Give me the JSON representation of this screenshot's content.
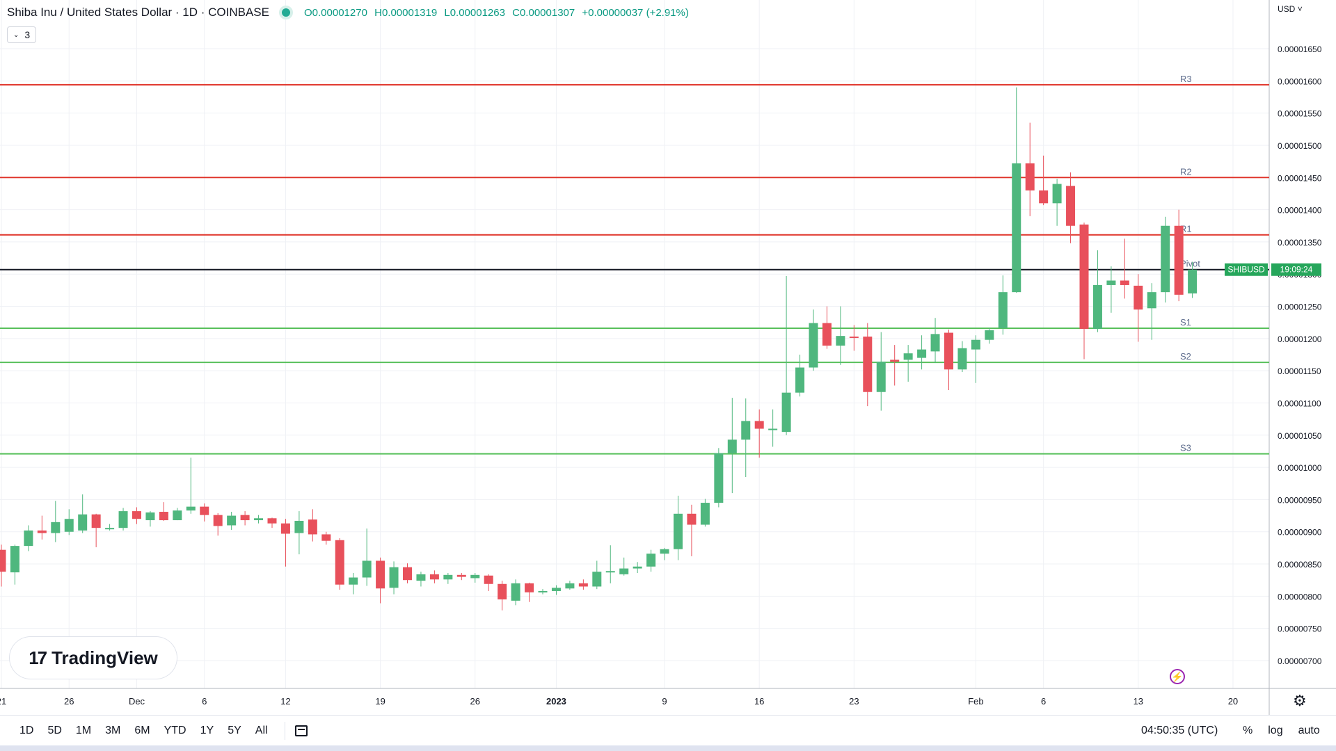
{
  "header": {
    "title": "Shiba Inu / United States Dollar · 1D · COINBASE",
    "ohlc": [
      {
        "label": "O",
        "value": "0.00001270"
      },
      {
        "label": "H",
        "value": "0.00001319"
      },
      {
        "label": "L",
        "value": "0.00001263"
      },
      {
        "label": "C",
        "value": "0.00001307"
      }
    ],
    "change": "+0.00000037 (+2.91%)",
    "indicators_count": "3",
    "currency": "USD"
  },
  "colors": {
    "up": "#4fb77e",
    "down": "#e8505b",
    "resistance": "#e0352b",
    "support": "#58c05b",
    "pivot": "#131722",
    "label": "#5d6c8c",
    "grid": "#eff1f5",
    "tag": "#26a65b"
  },
  "chart_data": {
    "type": "candlestick",
    "symbol_tag": "SHIBUSD",
    "countdown": "19:09:24",
    "ylim": [
      6.7e-06,
      1.715e-05
    ],
    "y_ticks": [
      "0.00001650",
      "0.00001600",
      "0.00001550",
      "0.00001500",
      "0.00001450",
      "0.00001400",
      "0.00001350",
      "0.00001300",
      "0.00001250",
      "0.00001200",
      "0.00001150",
      "0.00001100",
      "0.00001050",
      "0.00001000",
      "0.00000950",
      "0.00000900",
      "0.00000850",
      "0.00000800",
      "0.00000750",
      "0.00000700"
    ],
    "x_ticks": [
      {
        "label": "21",
        "date": "2022-11-21"
      },
      {
        "label": "26",
        "date": "2022-11-26"
      },
      {
        "label": "Dec",
        "date": "2022-12-01"
      },
      {
        "label": "6",
        "date": "2022-12-06"
      },
      {
        "label": "12",
        "date": "2022-12-12"
      },
      {
        "label": "19",
        "date": "2022-12-19"
      },
      {
        "label": "26",
        "date": "2022-12-26"
      },
      {
        "label": "2023",
        "date": "2023-01-01"
      },
      {
        "label": "9",
        "date": "2023-01-09"
      },
      {
        "label": "16",
        "date": "2023-01-16"
      },
      {
        "label": "23",
        "date": "2023-01-23"
      },
      {
        "label": "Feb",
        "date": "2023-02-01"
      },
      {
        "label": "6",
        "date": "2023-02-06"
      },
      {
        "label": "13",
        "date": "2023-02-13"
      },
      {
        "label": "20",
        "date": "2023-02-20"
      }
    ],
    "levels": [
      {
        "name": "R3",
        "value": 1.594e-05,
        "kind": "resistance"
      },
      {
        "name": "R2",
        "value": 1.45e-05,
        "kind": "resistance"
      },
      {
        "name": "R1",
        "value": 1.361e-05,
        "kind": "resistance"
      },
      {
        "name": "Pivot",
        "value": 1.307e-05,
        "kind": "pivot"
      },
      {
        "name": "S1",
        "value": 1.216e-05,
        "kind": "support"
      },
      {
        "name": "S2",
        "value": 1.163e-05,
        "kind": "support"
      },
      {
        "name": "S3",
        "value": 1.021e-05,
        "kind": "support"
      }
    ],
    "candles": [
      {
        "d": "2022-11-21",
        "o": 8.72e-06,
        "h": 8.8e-06,
        "l": 8.15e-06,
        "c": 8.38e-06
      },
      {
        "d": "2022-11-22",
        "o": 8.37e-06,
        "h": 8.8e-06,
        "l": 8.18e-06,
        "c": 8.78e-06
      },
      {
        "d": "2022-11-23",
        "o": 8.78e-06,
        "h": 9.1e-06,
        "l": 8.7e-06,
        "c": 9.02e-06
      },
      {
        "d": "2022-11-24",
        "o": 9.02e-06,
        "h": 9.25e-06,
        "l": 8.88e-06,
        "c": 8.98e-06
      },
      {
        "d": "2022-11-25",
        "o": 8.98e-06,
        "h": 9.48e-06,
        "l": 8.84e-06,
        "c": 9.15e-06
      },
      {
        "d": "2022-11-26",
        "o": 9e-06,
        "h": 9.35e-06,
        "l": 8.95e-06,
        "c": 9.2e-06
      },
      {
        "d": "2022-11-27",
        "o": 9.02e-06,
        "h": 9.58e-06,
        "l": 8.98e-06,
        "c": 9.27e-06
      },
      {
        "d": "2022-11-28",
        "o": 9.27e-06,
        "h": 9.28e-06,
        "l": 8.76e-06,
        "c": 9.06e-06
      },
      {
        "d": "2022-11-29",
        "o": 9.04e-06,
        "h": 9.12e-06,
        "l": 9.02e-06,
        "c": 9.06e-06
      },
      {
        "d": "2022-11-30",
        "o": 9.06e-06,
        "h": 9.37e-06,
        "l": 9.02e-06,
        "c": 9.32e-06
      },
      {
        "d": "2022-12-01",
        "o": 9.32e-06,
        "h": 9.38e-06,
        "l": 9.12e-06,
        "c": 9.2e-06
      },
      {
        "d": "2022-12-02",
        "o": 9.18e-06,
        "h": 9.32e-06,
        "l": 9.08e-06,
        "c": 9.3e-06
      },
      {
        "d": "2022-12-03",
        "o": 9.31e-06,
        "h": 9.46e-06,
        "l": 9.17e-06,
        "c": 9.18e-06
      },
      {
        "d": "2022-12-04",
        "o": 9.18e-06,
        "h": 9.37e-06,
        "l": 9.18e-06,
        "c": 9.33e-06
      },
      {
        "d": "2022-12-05",
        "o": 9.33e-06,
        "h": 1.015e-05,
        "l": 9.28e-06,
        "c": 9.39e-06
      },
      {
        "d": "2022-12-06",
        "o": 9.39e-06,
        "h": 9.44e-06,
        "l": 9.16e-06,
        "c": 9.26e-06
      },
      {
        "d": "2022-12-07",
        "o": 9.26e-06,
        "h": 9.29e-06,
        "l": 8.94e-06,
        "c": 9.09e-06
      },
      {
        "d": "2022-12-08",
        "o": 9.1e-06,
        "h": 9.31e-06,
        "l": 9.03e-06,
        "c": 9.25e-06
      },
      {
        "d": "2022-12-09",
        "o": 9.26e-06,
        "h": 9.32e-06,
        "l": 9.1e-06,
        "c": 9.18e-06
      },
      {
        "d": "2022-12-10",
        "o": 9.18e-06,
        "h": 9.26e-06,
        "l": 9.13e-06,
        "c": 9.21e-06
      },
      {
        "d": "2022-12-11",
        "o": 9.21e-06,
        "h": 9.22e-06,
        "l": 9.06e-06,
        "c": 9.13e-06
      },
      {
        "d": "2022-12-12",
        "o": 9.13e-06,
        "h": 9.2e-06,
        "l": 8.46e-06,
        "c": 8.97e-06
      },
      {
        "d": "2022-12-13",
        "o": 8.98e-06,
        "h": 9.32e-06,
        "l": 8.65e-06,
        "c": 9.17e-06
      },
      {
        "d": "2022-12-14",
        "o": 9.19e-06,
        "h": 9.35e-06,
        "l": 8.85e-06,
        "c": 8.96e-06
      },
      {
        "d": "2022-12-15",
        "o": 8.96e-06,
        "h": 9e-06,
        "l": 8.8e-06,
        "c": 8.86e-06
      },
      {
        "d": "2022-12-16",
        "o": 8.87e-06,
        "h": 8.9e-06,
        "l": 8.1e-06,
        "c": 8.18e-06
      },
      {
        "d": "2022-12-17",
        "o": 8.18e-06,
        "h": 8.36e-06,
        "l": 8.03e-06,
        "c": 8.29e-06
      },
      {
        "d": "2022-12-18",
        "o": 8.29e-06,
        "h": 9.05e-06,
        "l": 8.16e-06,
        "c": 8.55e-06
      },
      {
        "d": "2022-12-19",
        "o": 8.55e-06,
        "h": 8.6e-06,
        "l": 7.89e-06,
        "c": 8.12e-06
      },
      {
        "d": "2022-12-20",
        "o": 8.13e-06,
        "h": 8.54e-06,
        "l": 8.03e-06,
        "c": 8.45e-06
      },
      {
        "d": "2022-12-21",
        "o": 8.45e-06,
        "h": 8.51e-06,
        "l": 8.2e-06,
        "c": 8.25e-06
      },
      {
        "d": "2022-12-22",
        "o": 8.24e-06,
        "h": 8.38e-06,
        "l": 8.15e-06,
        "c": 8.34e-06
      },
      {
        "d": "2022-12-23",
        "o": 8.34e-06,
        "h": 8.4e-06,
        "l": 8.2e-06,
        "c": 8.26e-06
      },
      {
        "d": "2022-12-24",
        "o": 8.26e-06,
        "h": 8.36e-06,
        "l": 8.19e-06,
        "c": 8.33e-06
      },
      {
        "d": "2022-12-25",
        "o": 8.33e-06,
        "h": 8.36e-06,
        "l": 8.25e-06,
        "c": 8.3e-06
      },
      {
        "d": "2022-12-26",
        "o": 8.28e-06,
        "h": 8.36e-06,
        "l": 8.21e-06,
        "c": 8.33e-06
      },
      {
        "d": "2022-12-27",
        "o": 8.32e-06,
        "h": 8.34e-06,
        "l": 8.08e-06,
        "c": 8.19e-06
      },
      {
        "d": "2022-12-28",
        "o": 8.19e-06,
        "h": 8.24e-06,
        "l": 7.78e-06,
        "c": 7.95e-06
      },
      {
        "d": "2022-12-29",
        "o": 7.93e-06,
        "h": 8.26e-06,
        "l": 7.86e-06,
        "c": 8.2e-06
      },
      {
        "d": "2022-12-30",
        "o": 8.2e-06,
        "h": 8.21e-06,
        "l": 7.91e-06,
        "c": 8.06e-06
      },
      {
        "d": "2022-12-31",
        "o": 8.06e-06,
        "h": 8.11e-06,
        "l": 8.03e-06,
        "c": 8.08e-06
      },
      {
        "d": "2023-01-01",
        "o": 8.08e-06,
        "h": 8.17e-06,
        "l": 8.02e-06,
        "c": 8.13e-06
      },
      {
        "d": "2023-01-02",
        "o": 8.12e-06,
        "h": 8.24e-06,
        "l": 8.1e-06,
        "c": 8.2e-06
      },
      {
        "d": "2023-01-03",
        "o": 8.2e-06,
        "h": 8.26e-06,
        "l": 8.1e-06,
        "c": 8.15e-06
      },
      {
        "d": "2023-01-04",
        "o": 8.15e-06,
        "h": 8.55e-06,
        "l": 8.11e-06,
        "c": 8.38e-06
      },
      {
        "d": "2023-01-05",
        "o": 8.38e-06,
        "h": 8.79e-06,
        "l": 8.2e-06,
        "c": 8.39e-06
      },
      {
        "d": "2023-01-06",
        "o": 8.34e-06,
        "h": 8.6e-06,
        "l": 8.32e-06,
        "c": 8.43e-06
      },
      {
        "d": "2023-01-07",
        "o": 8.43e-06,
        "h": 8.53e-06,
        "l": 8.36e-06,
        "c": 8.46e-06
      },
      {
        "d": "2023-01-08",
        "o": 8.46e-06,
        "h": 8.72e-06,
        "l": 8.38e-06,
        "c": 8.66e-06
      },
      {
        "d": "2023-01-09",
        "o": 8.66e-06,
        "h": 8.75e-06,
        "l": 8.56e-06,
        "c": 8.73e-06
      },
      {
        "d": "2023-01-10",
        "o": 8.73e-06,
        "h": 9.56e-06,
        "l": 8.56e-06,
        "c": 9.28e-06
      },
      {
        "d": "2023-01-11",
        "o": 9.28e-06,
        "h": 9.42e-06,
        "l": 8.62e-06,
        "c": 9.11e-06
      },
      {
        "d": "2023-01-12",
        "o": 9.11e-06,
        "h": 9.51e-06,
        "l": 9.08e-06,
        "c": 9.45e-06
      },
      {
        "d": "2023-01-13",
        "o": 9.45e-06,
        "h": 1.03e-05,
        "l": 9.38e-06,
        "c": 1.022e-05
      },
      {
        "d": "2023-01-14",
        "o": 1.022e-05,
        "h": 1.108e-05,
        "l": 9.6e-06,
        "c": 1.043e-05
      },
      {
        "d": "2023-01-15",
        "o": 1.043e-05,
        "h": 1.107e-05,
        "l": 9.85e-06,
        "c": 1.072e-05
      },
      {
        "d": "2023-01-16",
        "o": 1.072e-05,
        "h": 1.09e-05,
        "l": 1.015e-05,
        "c": 1.06e-05
      },
      {
        "d": "2023-01-17",
        "o": 1.059e-05,
        "h": 1.09e-05,
        "l": 1.032e-05,
        "c": 1.06e-05
      },
      {
        "d": "2023-01-18",
        "o": 1.055e-05,
        "h": 1.297e-05,
        "l": 1.05e-05,
        "c": 1.116e-05
      },
      {
        "d": "2023-01-19",
        "o": 1.116e-05,
        "h": 1.175e-05,
        "l": 1.11e-05,
        "c": 1.155e-05
      },
      {
        "d": "2023-01-20",
        "o": 1.155e-05,
        "h": 1.245e-05,
        "l": 1.15e-05,
        "c": 1.224e-05
      },
      {
        "d": "2023-01-21",
        "o": 1.224e-05,
        "h": 1.25e-05,
        "l": 1.184e-05,
        "c": 1.189e-05
      },
      {
        "d": "2023-01-22",
        "o": 1.189e-05,
        "h": 1.25e-05,
        "l": 1.159e-05,
        "c": 1.204e-05
      },
      {
        "d": "2023-01-23",
        "o": 1.203e-05,
        "h": 1.221e-05,
        "l": 1.181e-05,
        "c": 1.201e-05
      },
      {
        "d": "2023-01-24",
        "o": 1.203e-05,
        "h": 1.224e-05,
        "l": 1.095e-05,
        "c": 1.117e-05
      },
      {
        "d": "2023-01-25",
        "o": 1.117e-05,
        "h": 1.21e-05,
        "l": 1.088e-05,
        "c": 1.164e-05
      },
      {
        "d": "2023-01-26",
        "o": 1.167e-05,
        "h": 1.19e-05,
        "l": 1.127e-05,
        "c": 1.164e-05
      },
      {
        "d": "2023-01-27",
        "o": 1.167e-05,
        "h": 1.19e-05,
        "l": 1.133e-05,
        "c": 1.177e-05
      },
      {
        "d": "2023-01-28",
        "o": 1.17e-05,
        "h": 1.205e-05,
        "l": 1.152e-05,
        "c": 1.183e-05
      },
      {
        "d": "2023-01-29",
        "o": 1.18e-05,
        "h": 1.232e-05,
        "l": 1.162e-05,
        "c": 1.207e-05
      },
      {
        "d": "2023-01-30",
        "o": 1.209e-05,
        "h": 1.214e-05,
        "l": 1.12e-05,
        "c": 1.152e-05
      },
      {
        "d": "2023-01-31",
        "o": 1.152e-05,
        "h": 1.196e-05,
        "l": 1.148e-05,
        "c": 1.185e-05
      },
      {
        "d": "2023-02-01",
        "o": 1.183e-05,
        "h": 1.205e-05,
        "l": 1.131e-05,
        "c": 1.198e-05
      },
      {
        "d": "2023-02-02",
        "o": 1.198e-05,
        "h": 1.217e-05,
        "l": 1.192e-05,
        "c": 1.213e-05
      },
      {
        "d": "2023-02-03",
        "o": 1.216e-05,
        "h": 1.298e-05,
        "l": 1.206e-05,
        "c": 1.272e-05
      },
      {
        "d": "2023-02-04",
        "o": 1.272e-05,
        "h": 1.59e-05,
        "l": 1.271e-05,
        "c": 1.472e-05
      },
      {
        "d": "2023-02-05",
        "o": 1.472e-05,
        "h": 1.535e-05,
        "l": 1.39e-05,
        "c": 1.43e-05
      },
      {
        "d": "2023-02-06",
        "o": 1.43e-05,
        "h": 1.484e-05,
        "l": 1.407e-05,
        "c": 1.41e-05
      },
      {
        "d": "2023-02-07",
        "o": 1.41e-05,
        "h": 1.448e-05,
        "l": 1.375e-05,
        "c": 1.44e-05
      },
      {
        "d": "2023-02-08",
        "o": 1.437e-05,
        "h": 1.458e-05,
        "l": 1.348e-05,
        "c": 1.375e-05
      },
      {
        "d": "2023-02-09",
        "o": 1.377e-05,
        "h": 1.38e-05,
        "l": 1.168e-05,
        "c": 1.215e-05
      },
      {
        "d": "2023-02-10",
        "o": 1.215e-05,
        "h": 1.337e-05,
        "l": 1.21e-05,
        "c": 1.283e-05
      },
      {
        "d": "2023-02-11",
        "o": 1.283e-05,
        "h": 1.312e-05,
        "l": 1.24e-05,
        "c": 1.29e-05
      },
      {
        "d": "2023-02-12",
        "o": 1.29e-05,
        "h": 1.355e-05,
        "l": 1.262e-05,
        "c": 1.283e-05
      },
      {
        "d": "2023-02-13",
        "o": 1.282e-05,
        "h": 1.3e-05,
        "l": 1.195e-05,
        "c": 1.245e-05
      },
      {
        "d": "2023-02-14",
        "o": 1.247e-05,
        "h": 1.286e-05,
        "l": 1.198e-05,
        "c": 1.272e-05
      },
      {
        "d": "2023-02-15",
        "o": 1.272e-05,
        "h": 1.389e-05,
        "l": 1.256e-05,
        "c": 1.375e-05
      },
      {
        "d": "2023-02-16",
        "o": 1.375e-05,
        "h": 1.4e-05,
        "l": 1.258e-05,
        "c": 1.268e-05
      },
      {
        "d": "2023-02-17",
        "o": 1.27e-05,
        "h": 1.319e-05,
        "l": 1.263e-05,
        "c": 1.307e-05
      }
    ]
  },
  "bottom_bar": {
    "timeframes": [
      "1D",
      "5D",
      "1M",
      "3M",
      "6M",
      "YTD",
      "1Y",
      "5Y",
      "All"
    ],
    "clock": "04:50:35 (UTC)",
    "percent_label": "%",
    "log_label": "log",
    "auto_label": "auto"
  },
  "watermark": "TradingView"
}
